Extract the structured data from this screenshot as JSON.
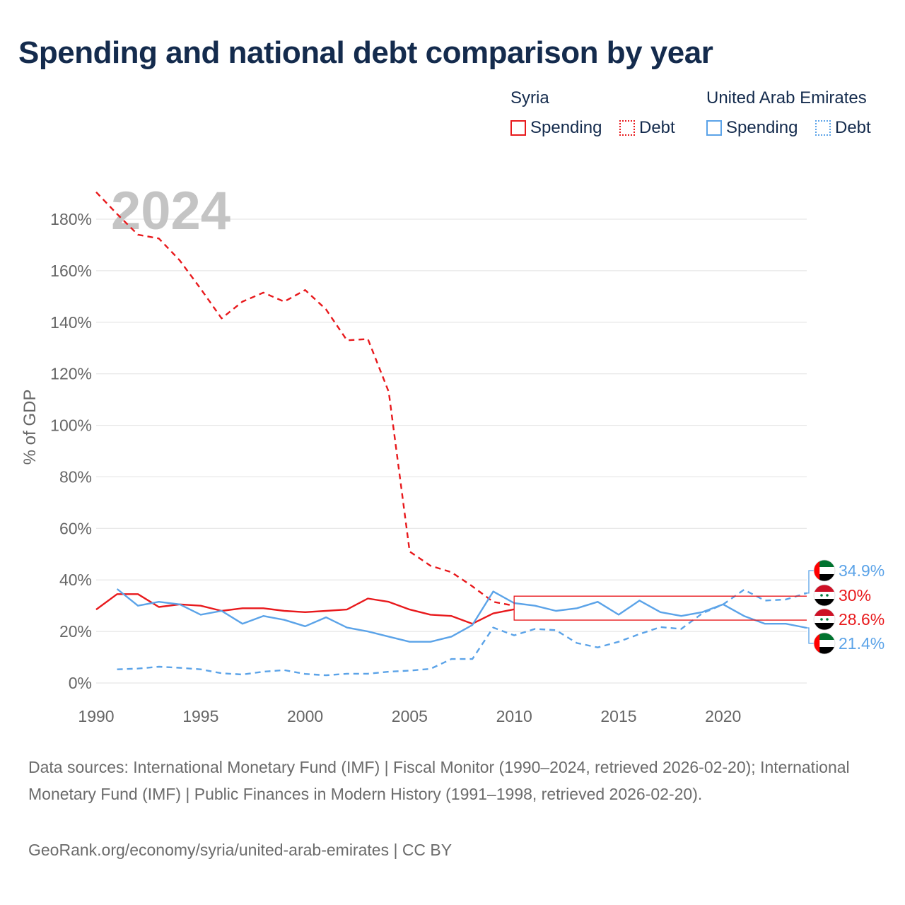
{
  "title": "Spending and national debt comparison by year",
  "legend": {
    "groups": [
      {
        "name": "Syria",
        "color": "#e8191c",
        "items": [
          {
            "label": "Spending",
            "style": "solid"
          },
          {
            "label": "Debt",
            "style": "dotted"
          }
        ]
      },
      {
        "name": "United Arab Emirates",
        "color": "#5ba3e8",
        "items": [
          {
            "label": "Spending",
            "style": "solid"
          },
          {
            "label": "Debt",
            "style": "dotted"
          }
        ]
      }
    ]
  },
  "year_watermark": "2024",
  "footer": {
    "sources": "Data sources: International Monetary Fund (IMF) | Fiscal Monitor (1990–2024, retrieved 2026-02-20); International Monetary Fund (IMF) | Public Finances in Modern History (1991–1998, retrieved 2026-02-20).",
    "credit": "GeoRank.org/economy/syria/united-arab-emirates | CC BY"
  },
  "colors": {
    "syria": "#e8191c",
    "uae": "#5ba3e8",
    "grid": "#e6e6e6",
    "axis_text": "#666666",
    "watermark": "#c4c4c4"
  },
  "chart_data": {
    "type": "line",
    "ylabel": "% of GDP",
    "xlim": [
      1990,
      2024
    ],
    "ylim": [
      0,
      190
    ],
    "x_ticks": [
      1990,
      1995,
      2000,
      2005,
      2010,
      2015,
      2020
    ],
    "y_ticks": [
      0,
      20,
      40,
      60,
      80,
      100,
      120,
      140,
      160,
      180
    ],
    "y_tick_labels": [
      "0%",
      "20%",
      "40%",
      "60%",
      "80%",
      "100%",
      "120%",
      "140%",
      "160%",
      "180%"
    ],
    "series": [
      {
        "name": "Syria Debt",
        "country": "Syria",
        "metric": "Debt",
        "dashed": true,
        "color": "#e8191c",
        "x": [
          1990,
          1991,
          1992,
          1993,
          1994,
          1995,
          1996,
          1997,
          1998,
          1999,
          2000,
          2001,
          2002,
          2003,
          2004,
          2005,
          2006,
          2007,
          2008,
          2009,
          2010
        ],
        "values": [
          190.5,
          182,
          174,
          172.5,
          164,
          153,
          141.5,
          148,
          151.5,
          148,
          152.5,
          145,
          133,
          133.5,
          113,
          51,
          45.5,
          43,
          37.5,
          31.5,
          30
        ]
      },
      {
        "name": "Syria Spending",
        "country": "Syria",
        "metric": "Spending",
        "dashed": false,
        "color": "#e8191c",
        "x": [
          1990,
          1991,
          1992,
          1993,
          1994,
          1995,
          1996,
          1997,
          1998,
          1999,
          2000,
          2001,
          2002,
          2003,
          2004,
          2005,
          2006,
          2007,
          2008,
          2009,
          2010
        ],
        "values": [
          28.5,
          34.5,
          34.5,
          29.5,
          30.5,
          30,
          28,
          29,
          29,
          28,
          27.5,
          28,
          28.5,
          32.8,
          31.5,
          28.5,
          26.5,
          26,
          23,
          27,
          28.6
        ]
      },
      {
        "name": "United Arab Emirates Spending",
        "country": "United Arab Emirates",
        "metric": "Spending",
        "dashed": false,
        "color": "#5ba3e8",
        "x": [
          1991,
          1992,
          1993,
          1994,
          1995,
          1996,
          1997,
          1998,
          1999,
          2000,
          2001,
          2002,
          2003,
          2004,
          2005,
          2006,
          2007,
          2008,
          2009,
          2010,
          2011,
          2012,
          2013,
          2014,
          2015,
          2016,
          2017,
          2018,
          2019,
          2020,
          2021,
          2022,
          2023,
          2024
        ],
        "values": [
          36.5,
          30,
          31.5,
          30.5,
          26.5,
          28,
          23,
          26,
          24.5,
          22,
          25.5,
          21.5,
          20,
          18,
          16,
          16,
          18,
          22.5,
          35.5,
          31,
          30,
          28,
          29,
          31.5,
          26.5,
          32,
          27.5,
          26,
          27.5,
          30.5,
          26,
          23,
          23,
          21.4
        ]
      },
      {
        "name": "United Arab Emirates Debt",
        "country": "United Arab Emirates",
        "metric": "Debt",
        "dashed": true,
        "color": "#5ba3e8",
        "x": [
          1991,
          1992,
          1993,
          1994,
          1995,
          1996,
          1997,
          1998,
          1999,
          2000,
          2001,
          2002,
          2003,
          2004,
          2005,
          2006,
          2007,
          2008,
          2009,
          2010,
          2011,
          2012,
          2013,
          2014,
          2015,
          2016,
          2017,
          2018,
          2019,
          2020,
          2021,
          2022,
          2023,
          2024
        ],
        "values": [
          5.3,
          5.6,
          6.3,
          5.9,
          5.3,
          3.8,
          3.3,
          4.4,
          5,
          3.5,
          3,
          3.6,
          3.6,
          4.4,
          4.8,
          5.5,
          9.3,
          9.3,
          21.5,
          18.5,
          21,
          20.5,
          15.5,
          13.8,
          16,
          19,
          21.7,
          21,
          27,
          30.5,
          36.2,
          32,
          32.4,
          34.9
        ]
      }
    ],
    "end_labels": [
      {
        "text": "34.9%",
        "value": 34.9,
        "country": "United Arab Emirates",
        "flag": "uae",
        "color": "#5ba3e8"
      },
      {
        "text": "30%",
        "value": 30,
        "country": "Syria",
        "flag": "syria",
        "color": "#e8191c"
      },
      {
        "text": "28.6%",
        "value": 28.6,
        "country": "Syria",
        "flag": "syria",
        "color": "#e8191c"
      },
      {
        "text": "21.4%",
        "value": 21.4,
        "country": "United Arab Emirates",
        "flag": "uae",
        "color": "#5ba3e8"
      }
    ]
  }
}
